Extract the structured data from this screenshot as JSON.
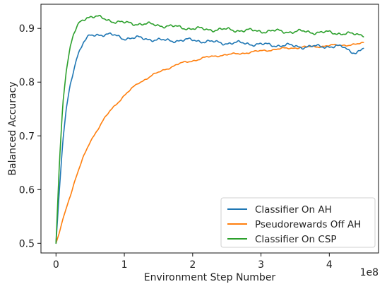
{
  "chart_data": {
    "type": "line",
    "title": "",
    "xlabel": "Environment Step Number",
    "ylabel": "Balanced Accuracy",
    "x_offset_label": "1e8",
    "xlim": [
      -0.22,
      4.72
    ],
    "ylim": [
      0.482,
      0.945
    ],
    "xticks": [
      0,
      1,
      2,
      3,
      4
    ],
    "yticks": [
      0.5,
      0.6,
      0.7,
      0.8,
      0.9
    ],
    "grid": false,
    "legend_position": "lower right",
    "series": [
      {
        "name": "Classifier On AH",
        "color": "#1f77b4",
        "x": [
          0.0,
          0.05,
          0.1,
          0.15,
          0.2,
          0.25,
          0.3,
          0.35,
          0.4,
          0.45,
          0.5,
          0.6,
          0.7,
          0.8,
          0.9,
          1.0,
          1.2,
          1.4,
          1.6,
          1.8,
          2.0,
          2.2,
          2.4,
          2.6,
          2.8,
          3.0,
          3.2,
          3.4,
          3.6,
          3.8,
          4.0,
          4.2,
          4.3,
          4.4,
          4.5
        ],
        "y": [
          0.5,
          0.6,
          0.69,
          0.75,
          0.79,
          0.82,
          0.845,
          0.86,
          0.873,
          0.88,
          0.886,
          0.889,
          0.889,
          0.888,
          0.885,
          0.882,
          0.882,
          0.88,
          0.877,
          0.878,
          0.878,
          0.876,
          0.873,
          0.873,
          0.872,
          0.87,
          0.869,
          0.868,
          0.866,
          0.866,
          0.867,
          0.865,
          0.859,
          0.855,
          0.862
        ]
      },
      {
        "name": "Pseudorewards Off AH",
        "color": "#ff7f0e",
        "x": [
          0.0,
          0.05,
          0.1,
          0.15,
          0.2,
          0.25,
          0.3,
          0.4,
          0.5,
          0.6,
          0.7,
          0.8,
          0.9,
          1.0,
          1.2,
          1.4,
          1.6,
          1.8,
          2.0,
          2.2,
          2.4,
          2.6,
          2.8,
          3.0,
          3.2,
          3.4,
          3.6,
          3.8,
          4.0,
          4.2,
          4.4,
          4.5
        ],
        "y": [
          0.5,
          0.52,
          0.545,
          0.565,
          0.585,
          0.605,
          0.625,
          0.66,
          0.69,
          0.71,
          0.73,
          0.748,
          0.762,
          0.775,
          0.798,
          0.812,
          0.824,
          0.834,
          0.84,
          0.846,
          0.85,
          0.852,
          0.855,
          0.858,
          0.861,
          0.863,
          0.865,
          0.866,
          0.868,
          0.869,
          0.87,
          0.873
        ]
      },
      {
        "name": "Classifier On CSP",
        "color": "#2ca02c",
        "x": [
          0.0,
          0.05,
          0.1,
          0.15,
          0.2,
          0.25,
          0.3,
          0.35,
          0.4,
          0.45,
          0.5,
          0.6,
          0.7,
          0.8,
          0.9,
          1.0,
          1.2,
          1.4,
          1.6,
          1.8,
          2.0,
          2.2,
          2.4,
          2.6,
          2.8,
          3.0,
          3.2,
          3.4,
          3.6,
          3.8,
          4.0,
          4.2,
          4.4,
          4.5
        ],
        "y": [
          0.5,
          0.65,
          0.76,
          0.82,
          0.86,
          0.885,
          0.9,
          0.912,
          0.918,
          0.921,
          0.922,
          0.921,
          0.918,
          0.915,
          0.912,
          0.91,
          0.909,
          0.907,
          0.905,
          0.902,
          0.9,
          0.898,
          0.898,
          0.897,
          0.896,
          0.895,
          0.895,
          0.894,
          0.894,
          0.893,
          0.892,
          0.891,
          0.888,
          0.889
        ]
      }
    ]
  }
}
